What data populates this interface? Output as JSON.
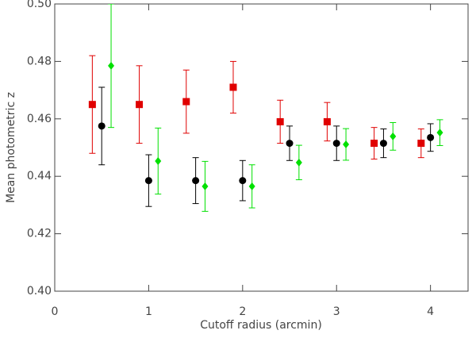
{
  "chart_data": {
    "type": "scatter",
    "xlabel": "Cutoff radius (arcmin)",
    "ylabel": "Mean photometric z",
    "xlim": [
      0,
      4.4
    ],
    "ylim": [
      0.4,
      0.5
    ],
    "xticks": [
      0,
      1,
      2,
      3,
      4
    ],
    "yticks": [
      {
        "value": 0.4,
        "label": "0.40"
      },
      0.42,
      0.44,
      0.46,
      0.48,
      {
        "value": 0.5,
        "label": "0.50"
      }
    ],
    "series": [
      {
        "color": "#e00000",
        "marker": "square",
        "x": [
          0.4,
          0.9,
          1.4,
          1.9,
          2.4,
          2.9,
          3.4,
          3.9
        ],
        "values": [
          0.465,
          0.465,
          0.466,
          0.471,
          0.459,
          0.459,
          0.4515,
          0.4515
        ],
        "errors": [
          0.017,
          0.0135,
          0.011,
          0.009,
          0.0075,
          0.0067,
          0.0055,
          0.005
        ]
      },
      {
        "color": "#000000",
        "marker": "circle",
        "x": [
          0.5,
          1.0,
          1.5,
          2.0,
          2.5,
          3.0,
          3.5,
          4.0
        ],
        "values": [
          0.4575,
          0.4385,
          0.4385,
          0.4385,
          0.4515,
          0.4515,
          0.4515,
          0.4535
        ],
        "errors": [
          0.0135,
          0.009,
          0.008,
          0.007,
          0.006,
          0.006,
          0.005,
          0.0048
        ]
      },
      {
        "color": "#00e000",
        "marker": "diamond",
        "x": [
          0.6,
          1.1,
          1.6,
          2.1,
          2.6,
          3.1,
          3.6,
          4.1
        ],
        "values": [
          0.4785,
          0.4453,
          0.4365,
          0.4365,
          0.4448,
          0.4511,
          0.4539,
          0.4552
        ],
        "errors": [
          0.0215,
          0.0115,
          0.0087,
          0.0075,
          0.006,
          0.0055,
          0.0048,
          0.0045
        ]
      }
    ]
  }
}
